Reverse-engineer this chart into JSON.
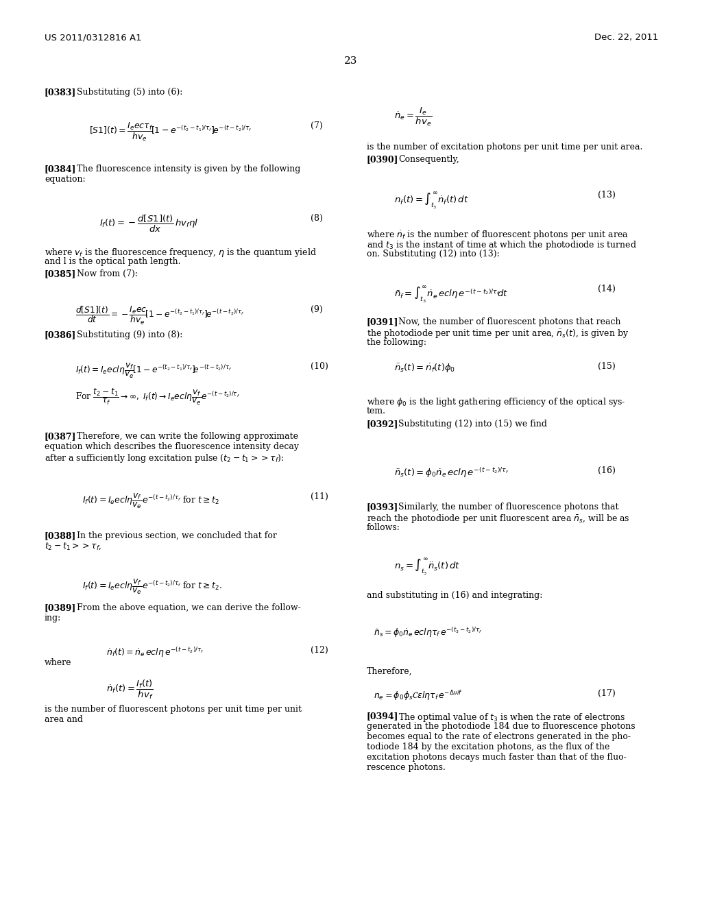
{
  "bg_color": "#ffffff",
  "header_left": "US 2011/0312816 A1",
  "header_right": "Dec. 22, 2011",
  "page_number": "23"
}
